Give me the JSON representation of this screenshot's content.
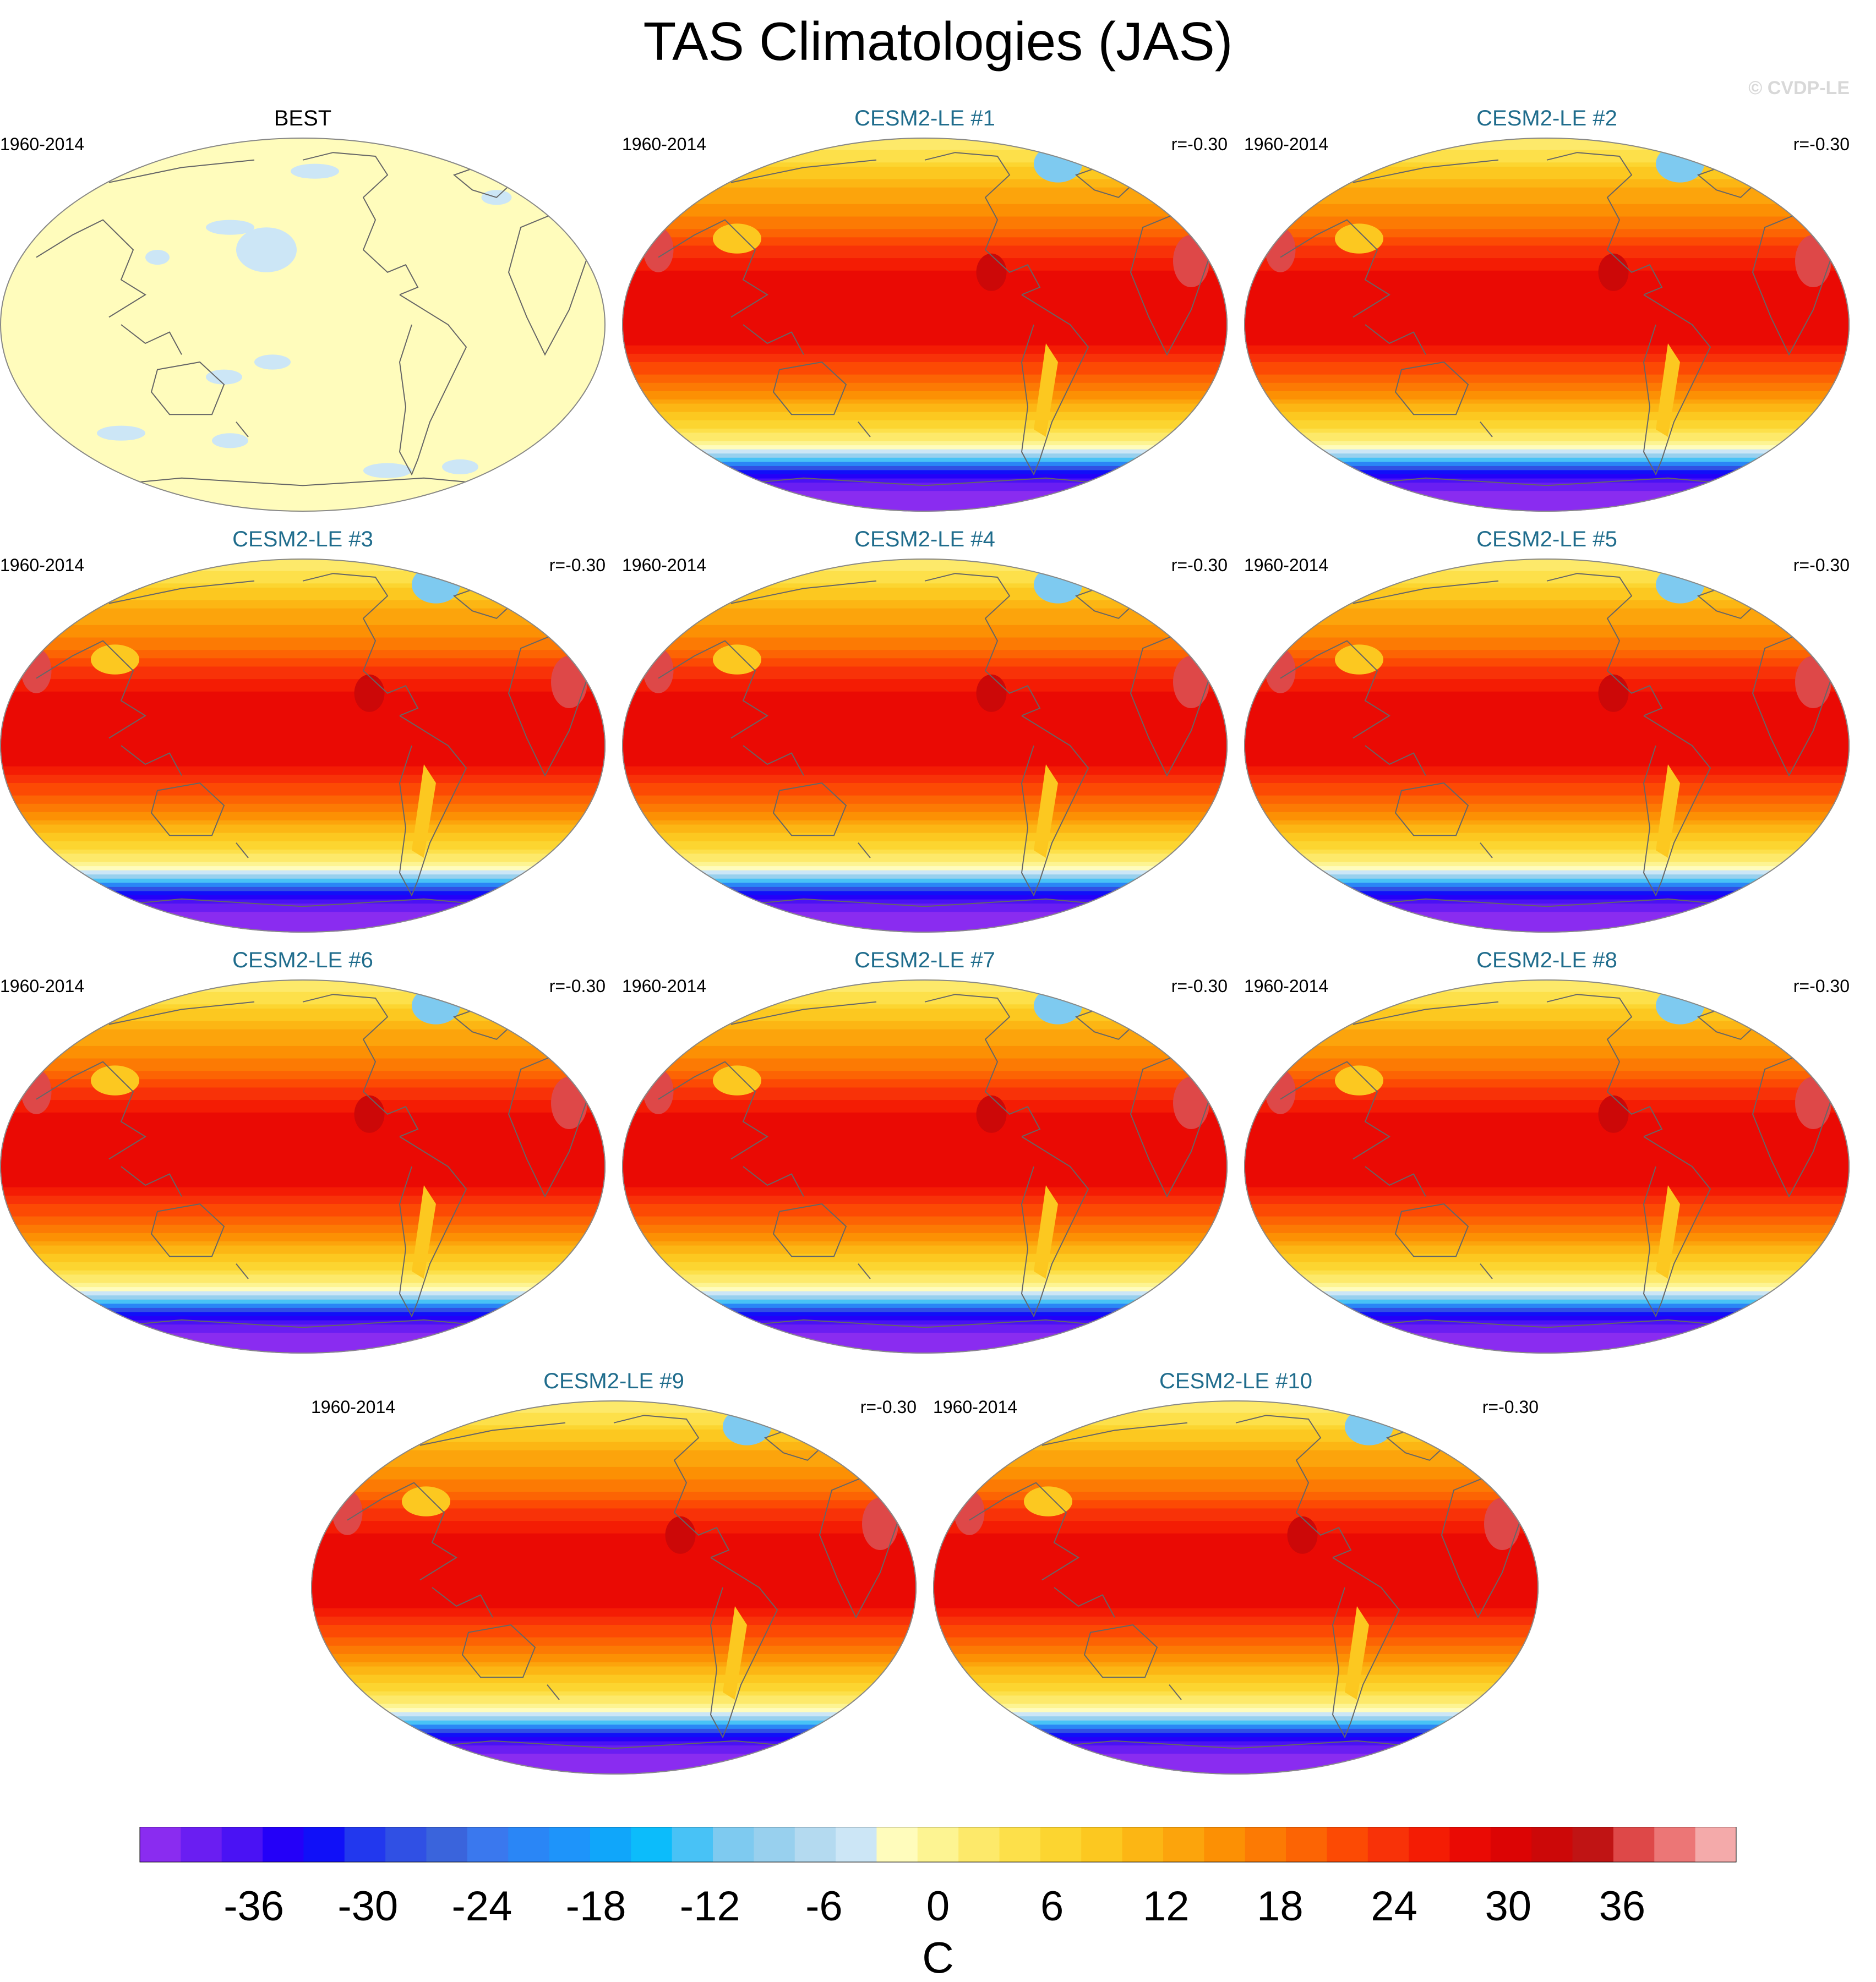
{
  "title": "TAS Climatologies (JAS)",
  "watermark": "© CVDP-LE",
  "chart_data": {
    "type": "heatmap",
    "title": "TAS Climatologies (JAS)",
    "variable": "TAS",
    "season": "JAS",
    "units": "C",
    "panels": [
      {
        "name": "BEST",
        "period": "1960-2014",
        "correlation": ""
      },
      {
        "name": "CESM2-LE #1",
        "period": "1960-2014",
        "correlation": "r=-0.30"
      },
      {
        "name": "CESM2-LE #2",
        "period": "1960-2014",
        "correlation": "r=-0.30"
      },
      {
        "name": "CESM2-LE #3",
        "period": "1960-2014",
        "correlation": "r=-0.30"
      },
      {
        "name": "CESM2-LE #4",
        "period": "1960-2014",
        "correlation": "r=-0.30"
      },
      {
        "name": "CESM2-LE #5",
        "period": "1960-2014",
        "correlation": "r=-0.30"
      },
      {
        "name": "CESM2-LE #6",
        "period": "1960-2014",
        "correlation": "r=-0.30"
      },
      {
        "name": "CESM2-LE #7",
        "period": "1960-2014",
        "correlation": "r=-0.30"
      },
      {
        "name": "CESM2-LE #8",
        "period": "1960-2014",
        "correlation": "r=-0.30"
      },
      {
        "name": "CESM2-LE #9",
        "period": "1960-2014",
        "correlation": "r=-0.30"
      },
      {
        "name": "CESM2-LE #10",
        "period": "1960-2014",
        "correlation": "r=-0.30"
      }
    ],
    "colorbar": {
      "label": "C",
      "range": [
        -42,
        42
      ],
      "ticks": [
        -36,
        -30,
        -24,
        -18,
        -12,
        -6,
        0,
        6,
        12,
        18,
        24,
        30,
        36
      ],
      "tick_labels": [
        "-36",
        "-30",
        "-24",
        "-18",
        "-12",
        "-6",
        "0",
        "6",
        "12",
        "18",
        "24",
        "30",
        "36"
      ],
      "colors": [
        "#8a2cf0",
        "#6a1ef2",
        "#4a12f4",
        "#2400f8",
        "#1010f8",
        "#2238ee",
        "#3050e4",
        "#3a64dc",
        "#3a78ee",
        "#2a86f6",
        "#1e94fa",
        "#10a6fa",
        "#0cbcfb",
        "#48c2f6",
        "#7ecaf0",
        "#98d0ee",
        "#b4daf0",
        "#cce6f6",
        "#fffcbc",
        "#fdf492",
        "#fde96a",
        "#fde04a",
        "#fcd530",
        "#fcc820",
        "#fcb614",
        "#fca40c",
        "#fc9004",
        "#fc7a04",
        "#fc6404",
        "#fc4a04",
        "#f83208",
        "#f41c04",
        "#ea0a04",
        "#dc0404",
        "#cc0808",
        "#c01414",
        "#de4848",
        "#ec7676",
        "#f4aaaa"
      ]
    },
    "observed_map_colors": {
      "land_ocean": "#fffcbc",
      "patches": "#cce6f6"
    }
  }
}
